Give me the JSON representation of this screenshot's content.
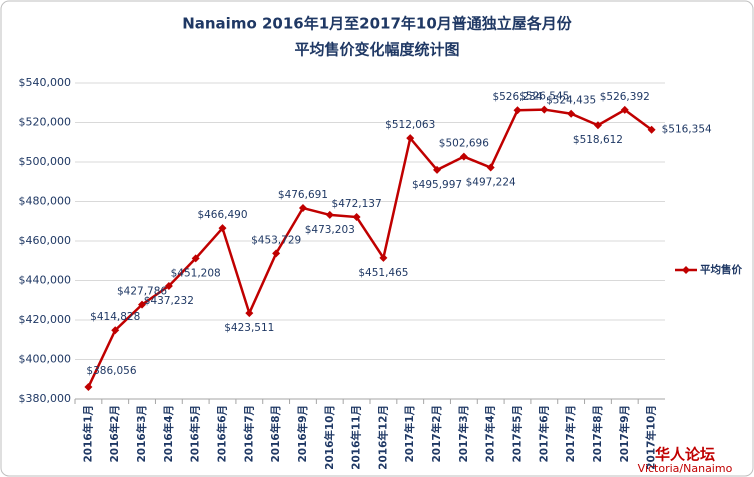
{
  "chart_data": {
    "type": "line",
    "title": "Nanaimo 2016年1月至2017年10月普通独立屋各月份",
    "subtitle": "平均售价变化幅度统计图",
    "categories": [
      "2016年1月",
      "2016年2月",
      "2016年3月",
      "2016年4月",
      "2016年5月",
      "2016年6月",
      "2016年7月",
      "2016年8月",
      "2016年9月",
      "2016年10月",
      "2016年11月",
      "2016年12月",
      "2017年1月",
      "2017年2月",
      "2017年3月",
      "2017年4月",
      "2017年5月",
      "2017年6月",
      "2017年7月",
      "2017年8月",
      "2017年9月",
      "2017年10月"
    ],
    "series": [
      {
        "name": "平均售价",
        "color": "#c00000",
        "values": [
          386056,
          414828,
          427786,
          437232,
          451208,
          466490,
          423511,
          453729,
          476691,
          473203,
          472137,
          451465,
          512063,
          495997,
          502696,
          497224,
          526234,
          526545,
          524435,
          518612,
          526392,
          516354
        ],
        "value_labels": [
          "$386,056",
          "$414,828",
          "$427,786",
          "$437,232",
          "$451,208",
          "$466,490",
          "$423,511",
          "$453,729",
          "$476,691",
          "$473,203",
          "$472,137",
          "$451,465",
          "$512,063",
          "$495,997",
          "$502,696",
          "$497,224",
          "$526,234",
          "$526,545",
          "$524,435",
          "$518,612",
          "$526,392",
          "$516,354"
        ]
      }
    ],
    "ylim": [
      380000,
      540000
    ],
    "yticks": [
      {
        "value": 380000,
        "label": "$380,000"
      },
      {
        "value": 400000,
        "label": "$400,000"
      },
      {
        "value": 420000,
        "label": "$420,000"
      },
      {
        "value": 440000,
        "label": "$440,000"
      },
      {
        "value": 460000,
        "label": "$460,000"
      },
      {
        "value": 480000,
        "label": "$480,000"
      },
      {
        "value": 500000,
        "label": "$500,000"
      },
      {
        "value": 520000,
        "label": "$520,000"
      },
      {
        "value": 540000,
        "label": "$540,000"
      }
    ],
    "grid": true,
    "legend": "right",
    "annotations": [
      "华人论坛",
      "Victoria/Nanaimo"
    ]
  }
}
